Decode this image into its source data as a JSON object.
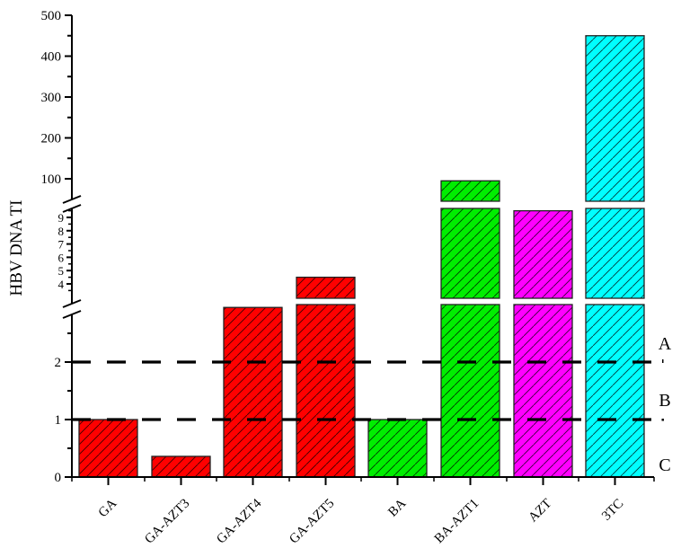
{
  "chart_data": {
    "type": "bar",
    "title": "",
    "xlabel": "",
    "ylabel": "HBV DNA TI",
    "categories": [
      "GA",
      "GA-AZT3",
      "GA-AZT4",
      "GA-AZT5",
      "BA",
      "BA-AZT1",
      "AZT",
      "3TC"
    ],
    "values": [
      1.0,
      0.36,
      2.95,
      4.5,
      1.0,
      95,
      9.5,
      450
    ],
    "colors": [
      "#ff0000",
      "#ff0000",
      "#ff0000",
      "#ff0000",
      "#00ee00",
      "#00ee00",
      "#ff00ff",
      "#00ffff"
    ],
    "hatch": "diagonal",
    "y_axis": {
      "broken": true,
      "segments": [
        {
          "range": [
            0,
            3
          ],
          "ticks": [
            0,
            1,
            2
          ],
          "minor_ticks": [
            0.5,
            1.5,
            2.5
          ]
        },
        {
          "range": [
            3.5,
            9.8
          ],
          "ticks": [
            4,
            5,
            6,
            7,
            8,
            9
          ]
        },
        {
          "range": [
            60,
            500
          ],
          "ticks": [
            100,
            200,
            300,
            400,
            500
          ],
          "minor_ticks": [
            150,
            250,
            350,
            450
          ]
        }
      ]
    },
    "reference_lines": [
      {
        "y": 2,
        "style": "dashed",
        "label": "A"
      },
      {
        "y": 1,
        "style": "dashed",
        "label": "B"
      }
    ],
    "zone_labels": [
      "A",
      "B",
      "C"
    ],
    "grid": false,
    "legend": null
  }
}
